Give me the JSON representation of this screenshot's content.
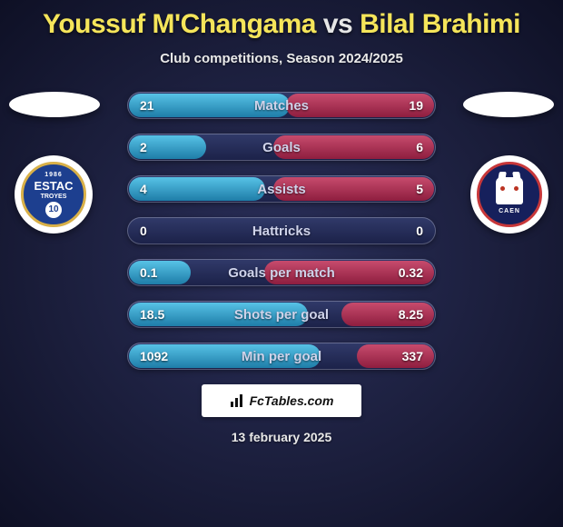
{
  "title": {
    "player1": "Youssuf M'Changama",
    "vs": "vs",
    "player2": "Bilal Brahimi"
  },
  "subtitle": "Club competitions, Season 2024/2025",
  "badges": {
    "left": {
      "line1": "1986",
      "line2": "ESTAC",
      "line3": "TROYES",
      "num": "10",
      "bg": "#1d3f8f",
      "ring": "#d8b048"
    },
    "right": {
      "text": "CAEN",
      "bg": "#16205c",
      "ring": "#c7373a"
    }
  },
  "colors": {
    "fill_left_top": "#57c2e6",
    "fill_left_bottom": "#1e7da8",
    "fill_right_top": "#c74b6d",
    "fill_right_bottom": "#8e1e3f",
    "row_top": "#313a6a",
    "row_bottom": "#1b2148",
    "label": "#cfd3ea",
    "value": "#ffffff"
  },
  "rows": [
    {
      "label": "Matches",
      "left": "21",
      "right": "19",
      "lw": 52,
      "rw": 48
    },
    {
      "label": "Goals",
      "left": "2",
      "right": "6",
      "lw": 25,
      "rw": 52
    },
    {
      "label": "Assists",
      "left": "4",
      "right": "5",
      "lw": 44,
      "rw": 52
    },
    {
      "label": "Hattricks",
      "left": "0",
      "right": "0",
      "lw": 0,
      "rw": 0
    },
    {
      "label": "Goals per match",
      "left": "0.1",
      "right": "0.32",
      "lw": 20,
      "rw": 55
    },
    {
      "label": "Shots per goal",
      "left": "18.5",
      "right": "8.25",
      "lw": 58,
      "rw": 30
    },
    {
      "label": "Min per goal",
      "left": "1092",
      "right": "337",
      "lw": 62,
      "rw": 25
    }
  ],
  "branding": "FcTables.com",
  "date": "13 february 2025"
}
